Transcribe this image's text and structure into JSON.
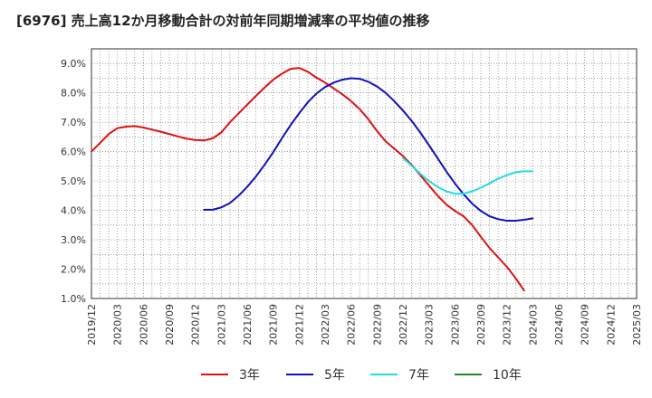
{
  "chart_data": {
    "type": "line",
    "title": "[6976]  売上高12か月移動合計の対前年同期増減率の平均値の推移",
    "xlabel": "",
    "ylabel": "",
    "ylim": [
      1.0,
      9.5
    ],
    "y_ticks": [
      "1.0%",
      "2.0%",
      "3.0%",
      "4.0%",
      "5.0%",
      "6.0%",
      "7.0%",
      "8.0%",
      "9.0%"
    ],
    "x_ticks": [
      "2019/12",
      "2020/03",
      "2020/06",
      "2020/09",
      "2020/12",
      "2021/03",
      "2021/06",
      "2021/09",
      "2021/12",
      "2022/03",
      "2022/06",
      "2022/09",
      "2022/12",
      "2023/03",
      "2023/06",
      "2023/09",
      "2023/12",
      "2024/03",
      "2024/06",
      "2024/09",
      "2024/12",
      "2025/03"
    ],
    "grid": true,
    "legend_position": "bottom",
    "series": [
      {
        "name": "3年",
        "color": "#dd1111",
        "values": [
          6.0,
          6.3,
          6.6,
          6.8,
          6.85,
          6.87,
          6.82,
          6.75,
          6.68,
          6.6,
          6.52,
          6.44,
          6.4,
          6.38,
          6.45,
          6.65,
          7.0,
          7.3,
          7.6,
          7.9,
          8.18,
          8.45,
          8.65,
          8.82,
          8.85,
          8.72,
          8.52,
          8.35,
          8.15,
          7.95,
          7.72,
          7.45,
          7.1,
          6.7,
          6.35,
          6.1,
          5.85,
          5.55,
          5.2,
          4.85,
          4.5,
          4.2,
          3.98,
          3.8,
          3.5,
          3.1,
          2.72,
          2.4,
          2.08,
          1.7,
          1.27
        ]
      },
      {
        "name": "5年",
        "color": "#1111bb",
        "values": [
          null,
          null,
          null,
          null,
          null,
          null,
          null,
          null,
          null,
          null,
          null,
          null,
          null,
          4.02,
          4.02,
          4.1,
          4.25,
          4.5,
          4.8,
          5.15,
          5.55,
          5.98,
          6.45,
          6.9,
          7.3,
          7.68,
          7.98,
          8.2,
          8.35,
          8.45,
          8.5,
          8.48,
          8.38,
          8.22,
          8.0,
          7.72,
          7.4,
          7.05,
          6.65,
          6.22,
          5.78,
          5.33,
          4.92,
          4.55,
          4.23,
          3.98,
          3.8,
          3.7,
          3.65,
          3.65,
          3.68,
          3.73
        ]
      },
      {
        "name": "7年",
        "color": "#22dddd",
        "values": [
          null,
          null,
          null,
          null,
          null,
          null,
          null,
          null,
          null,
          null,
          null,
          null,
          null,
          null,
          null,
          null,
          null,
          null,
          null,
          null,
          null,
          null,
          null,
          null,
          null,
          null,
          null,
          null,
          null,
          null,
          null,
          null,
          null,
          null,
          null,
          null,
          5.78,
          5.52,
          5.25,
          5.0,
          4.8,
          4.65,
          4.57,
          4.57,
          4.65,
          4.77,
          4.92,
          5.08,
          5.2,
          5.3,
          5.33,
          5.33
        ]
      },
      {
        "name": "10年",
        "color": "#228822",
        "values": []
      }
    ]
  }
}
